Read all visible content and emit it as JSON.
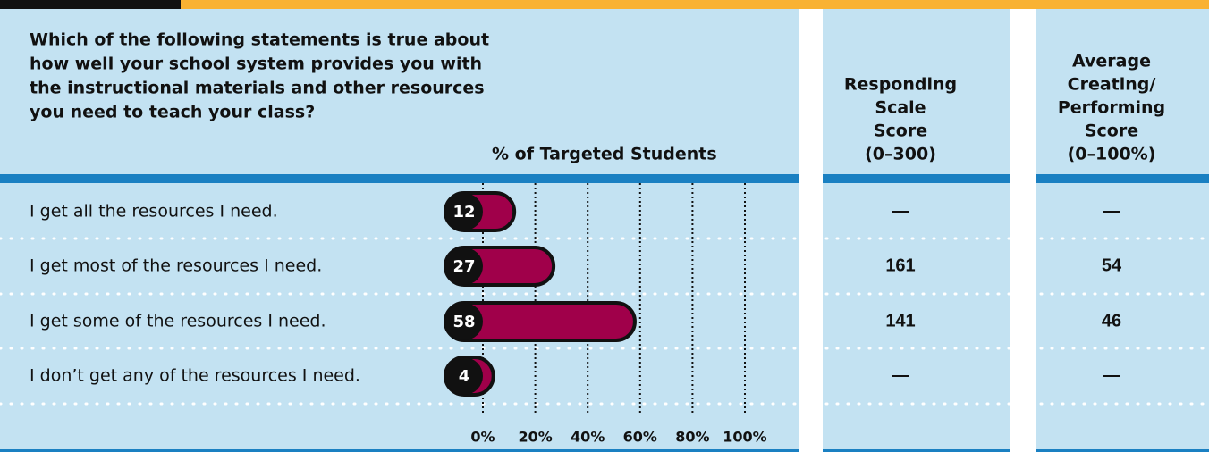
{
  "chart_data": {
    "type": "bar",
    "orientation": "horizontal",
    "question": [
      "Which of the following statements is true about",
      "how well your school system provides you with",
      "the instructional materials and other resources",
      "you need to teach your class?"
    ],
    "xlabel": "% of Targeted Students",
    "categories": [
      "I get all the resources I need.",
      "I get most of the resources I need.",
      "I get some of the resources I need.",
      "I don’t get any of the resources I need."
    ],
    "values": [
      12,
      27,
      58,
      4
    ],
    "color": "#a0004a",
    "xlim": [
      0,
      100
    ],
    "xticks": [
      {
        "value": 0,
        "label": "0%"
      },
      {
        "value": 20,
        "label": "20%"
      },
      {
        "value": 40,
        "label": "40%"
      },
      {
        "value": 60,
        "label": "60%"
      },
      {
        "value": 80,
        "label": "80%"
      },
      {
        "value": 100,
        "label": "100%"
      }
    ],
    "grid": true,
    "columns": [
      {
        "header": [
          "Responding",
          "Scale",
          "Score",
          "(0–300)"
        ],
        "cells": [
          "—",
          "161",
          "141",
          "—"
        ]
      },
      {
        "header": [
          "Average",
          "Creating/",
          "Performing",
          "Score",
          "(0–100%)"
        ],
        "cells": [
          "—",
          "54",
          "46",
          "—"
        ]
      }
    ]
  }
}
